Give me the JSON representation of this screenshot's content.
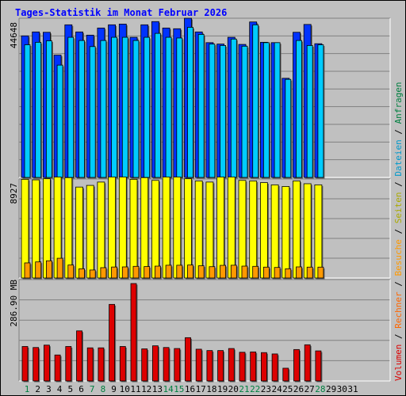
{
  "header": {
    "title": "Tages-Statistik im Monat Februar 2026"
  },
  "colors": {
    "background": "#c0c0c0",
    "anfragen": "#0033ff",
    "dateien": "#00ccff",
    "seiten": "#ffff00",
    "besuche": "#ff9900",
    "rechner": "#ff6600",
    "volumen": "#dd0000",
    "weekday_label": "#004400",
    "weekend_label": "#008040"
  },
  "chart_data": [
    {
      "type": "bar",
      "categories": [
        "1",
        "2",
        "3",
        "4",
        "5",
        "6",
        "7",
        "8",
        "9",
        "10",
        "11",
        "12",
        "13",
        "14",
        "15",
        "16",
        "17",
        "18",
        "19",
        "20",
        "21",
        "22",
        "23",
        "24",
        "25",
        "26",
        "27",
        "28"
      ],
      "weekend_days": [
        "1",
        "7",
        "8",
        "14",
        "15",
        "21",
        "22",
        "28"
      ],
      "ylabel": "44648",
      "ylim": [
        0,
        44648
      ],
      "grid": true,
      "series": [
        {
          "name": "Anfragen",
          "values": [
            39700,
            40800,
            40700,
            34300,
            42800,
            40800,
            39900,
            41900,
            42800,
            43000,
            39300,
            42800,
            43700,
            41900,
            41700,
            44700,
            40800,
            37800,
            37400,
            39300,
            37300,
            43600,
            37900,
            37800,
            27800,
            40700,
            42900,
            37500
          ]
        },
        {
          "name": "Dateien",
          "values": [
            37200,
            37900,
            38300,
            31500,
            39300,
            38400,
            36700,
            38400,
            39300,
            39300,
            38400,
            39300,
            40400,
            39300,
            39100,
            42100,
            40100,
            37400,
            37000,
            38800,
            36800,
            42800,
            37800,
            37800,
            27500,
            38400,
            37000,
            37200
          ]
        }
      ]
    },
    {
      "type": "bar",
      "categories": [
        "1",
        "2",
        "3",
        "4",
        "5",
        "6",
        "7",
        "8",
        "9",
        "10",
        "11",
        "12",
        "13",
        "14",
        "15",
        "16",
        "17",
        "18",
        "19",
        "20",
        "21",
        "22",
        "23",
        "24",
        "25",
        "26",
        "27",
        "28"
      ],
      "ylabel": "8927",
      "ylim": [
        0,
        8927
      ],
      "grid": true,
      "series": [
        {
          "name": "Seiten",
          "values": [
            8900,
            8850,
            8950,
            9150,
            9050,
            8200,
            8350,
            8650,
            9200,
            9300,
            8900,
            9050,
            8800,
            9150,
            9150,
            8950,
            8750,
            8650,
            9150,
            9200,
            8800,
            8750,
            8600,
            8400,
            8250,
            8750,
            8500,
            8400
          ]
        },
        {
          "name": "Besuche",
          "values": [
            1360,
            1450,
            1550,
            1780,
            1170,
            830,
            720,
            930,
            990,
            1000,
            1050,
            1030,
            1070,
            1150,
            1150,
            1170,
            1100,
            1020,
            1140,
            1150,
            1070,
            1050,
            980,
            950,
            830,
            1000,
            980,
            980
          ]
        }
      ]
    },
    {
      "type": "bar",
      "categories": [
        "1",
        "2",
        "3",
        "4",
        "5",
        "6",
        "7",
        "8",
        "9",
        "10",
        "11",
        "12",
        "13",
        "14",
        "15",
        "16",
        "17",
        "18",
        "19",
        "20",
        "21",
        "22",
        "23",
        "24",
        "25",
        "26",
        "27",
        "28"
      ],
      "ylabel": "286.90 MB",
      "ylim": [
        0,
        286.9
      ],
      "grid": true,
      "series": [
        {
          "name": "Volumen",
          "values": [
            101.5,
            98.5,
            105.5,
            76.5,
            101.5,
            147.5,
            97.5,
            97.5,
            225.5,
            101.5,
            289.9,
            94.5,
            103.5,
            98.5,
            95.5,
            127.5,
            93.5,
            89.5,
            89.5,
            95.5,
            84.5,
            85.5,
            83.5,
            79.5,
            37.5,
            92.5,
            106.5,
            88.5
          ]
        }
      ]
    }
  ],
  "right_legend": {
    "volumen": "Volumen",
    "rechner": "Rechner",
    "besuche": "Besuche",
    "seiten": "Seiten",
    "dateien": "Dateien",
    "anfragen": "Anfragen",
    "sep": " / "
  },
  "x_axis_extra_labels": [
    "29",
    "30",
    "31"
  ]
}
